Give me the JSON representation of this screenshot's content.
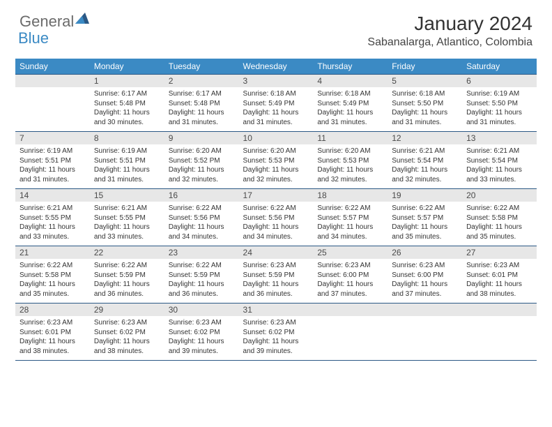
{
  "brand": {
    "text_general": "General",
    "text_blue": "Blue",
    "icon_color": "#2b5885"
  },
  "title": "January 2024",
  "location": "Sabanalarga, Atlantico, Colombia",
  "colors": {
    "header_bg": "#3b8ac4",
    "header_text": "#ffffff",
    "daynum_bg": "#e7e7e7",
    "rule": "#2b5885",
    "body_text": "#333333"
  },
  "weekdays": [
    "Sunday",
    "Monday",
    "Tuesday",
    "Wednesday",
    "Thursday",
    "Friday",
    "Saturday"
  ],
  "weeks": [
    [
      null,
      {
        "n": "1",
        "sunrise": "6:17 AM",
        "sunset": "5:48 PM",
        "daylight": "11 hours and 30 minutes."
      },
      {
        "n": "2",
        "sunrise": "6:17 AM",
        "sunset": "5:48 PM",
        "daylight": "11 hours and 31 minutes."
      },
      {
        "n": "3",
        "sunrise": "6:18 AM",
        "sunset": "5:49 PM",
        "daylight": "11 hours and 31 minutes."
      },
      {
        "n": "4",
        "sunrise": "6:18 AM",
        "sunset": "5:49 PM",
        "daylight": "11 hours and 31 minutes."
      },
      {
        "n": "5",
        "sunrise": "6:18 AM",
        "sunset": "5:50 PM",
        "daylight": "11 hours and 31 minutes."
      },
      {
        "n": "6",
        "sunrise": "6:19 AM",
        "sunset": "5:50 PM",
        "daylight": "11 hours and 31 minutes."
      }
    ],
    [
      {
        "n": "7",
        "sunrise": "6:19 AM",
        "sunset": "5:51 PM",
        "daylight": "11 hours and 31 minutes."
      },
      {
        "n": "8",
        "sunrise": "6:19 AM",
        "sunset": "5:51 PM",
        "daylight": "11 hours and 31 minutes."
      },
      {
        "n": "9",
        "sunrise": "6:20 AM",
        "sunset": "5:52 PM",
        "daylight": "11 hours and 32 minutes."
      },
      {
        "n": "10",
        "sunrise": "6:20 AM",
        "sunset": "5:53 PM",
        "daylight": "11 hours and 32 minutes."
      },
      {
        "n": "11",
        "sunrise": "6:20 AM",
        "sunset": "5:53 PM",
        "daylight": "11 hours and 32 minutes."
      },
      {
        "n": "12",
        "sunrise": "6:21 AM",
        "sunset": "5:54 PM",
        "daylight": "11 hours and 32 minutes."
      },
      {
        "n": "13",
        "sunrise": "6:21 AM",
        "sunset": "5:54 PM",
        "daylight": "11 hours and 33 minutes."
      }
    ],
    [
      {
        "n": "14",
        "sunrise": "6:21 AM",
        "sunset": "5:55 PM",
        "daylight": "11 hours and 33 minutes."
      },
      {
        "n": "15",
        "sunrise": "6:21 AM",
        "sunset": "5:55 PM",
        "daylight": "11 hours and 33 minutes."
      },
      {
        "n": "16",
        "sunrise": "6:22 AM",
        "sunset": "5:56 PM",
        "daylight": "11 hours and 34 minutes."
      },
      {
        "n": "17",
        "sunrise": "6:22 AM",
        "sunset": "5:56 PM",
        "daylight": "11 hours and 34 minutes."
      },
      {
        "n": "18",
        "sunrise": "6:22 AM",
        "sunset": "5:57 PM",
        "daylight": "11 hours and 34 minutes."
      },
      {
        "n": "19",
        "sunrise": "6:22 AM",
        "sunset": "5:57 PM",
        "daylight": "11 hours and 35 minutes."
      },
      {
        "n": "20",
        "sunrise": "6:22 AM",
        "sunset": "5:58 PM",
        "daylight": "11 hours and 35 minutes."
      }
    ],
    [
      {
        "n": "21",
        "sunrise": "6:22 AM",
        "sunset": "5:58 PM",
        "daylight": "11 hours and 35 minutes."
      },
      {
        "n": "22",
        "sunrise": "6:22 AM",
        "sunset": "5:59 PM",
        "daylight": "11 hours and 36 minutes."
      },
      {
        "n": "23",
        "sunrise": "6:22 AM",
        "sunset": "5:59 PM",
        "daylight": "11 hours and 36 minutes."
      },
      {
        "n": "24",
        "sunrise": "6:23 AM",
        "sunset": "5:59 PM",
        "daylight": "11 hours and 36 minutes."
      },
      {
        "n": "25",
        "sunrise": "6:23 AM",
        "sunset": "6:00 PM",
        "daylight": "11 hours and 37 minutes."
      },
      {
        "n": "26",
        "sunrise": "6:23 AM",
        "sunset": "6:00 PM",
        "daylight": "11 hours and 37 minutes."
      },
      {
        "n": "27",
        "sunrise": "6:23 AM",
        "sunset": "6:01 PM",
        "daylight": "11 hours and 38 minutes."
      }
    ],
    [
      {
        "n": "28",
        "sunrise": "6:23 AM",
        "sunset": "6:01 PM",
        "daylight": "11 hours and 38 minutes."
      },
      {
        "n": "29",
        "sunrise": "6:23 AM",
        "sunset": "6:02 PM",
        "daylight": "11 hours and 38 minutes."
      },
      {
        "n": "30",
        "sunrise": "6:23 AM",
        "sunset": "6:02 PM",
        "daylight": "11 hours and 39 minutes."
      },
      {
        "n": "31",
        "sunrise": "6:23 AM",
        "sunset": "6:02 PM",
        "daylight": "11 hours and 39 minutes."
      },
      null,
      null,
      null
    ]
  ],
  "labels": {
    "sunrise_prefix": "Sunrise: ",
    "sunset_prefix": "Sunset: ",
    "daylight_prefix": "Daylight: "
  }
}
